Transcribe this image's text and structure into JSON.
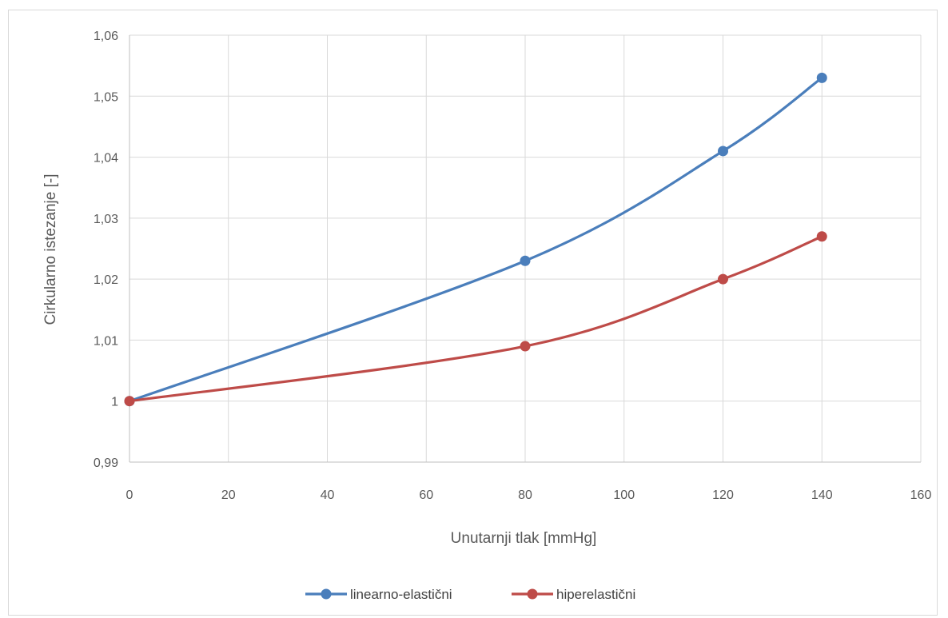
{
  "chart_data": {
    "type": "line",
    "xlabel": "Unutarnji tlak [mmHg]",
    "ylabel": "Cirkularno istezanje [-]",
    "xlim": [
      0,
      160
    ],
    "ylim": [
      0.99,
      1.06
    ],
    "x_ticks": [
      0,
      20,
      40,
      60,
      80,
      100,
      120,
      140,
      160
    ],
    "x_tick_labels": [
      "0",
      "20",
      "40",
      "60",
      "80",
      "100",
      "120",
      "140",
      "160"
    ],
    "y_ticks": [
      0.99,
      1.0,
      1.01,
      1.02,
      1.03,
      1.04,
      1.05,
      1.06
    ],
    "y_tick_labels": [
      "0,99",
      "1",
      "1,01",
      "1,02",
      "1,03",
      "1,04",
      "1,05",
      "1,06"
    ],
    "grid": true,
    "smooth": true,
    "legend_position": "bottom",
    "series": [
      {
        "name": "linearno-elastični",
        "color": "#4a7ebb",
        "x": [
          0,
          80,
          120,
          140
        ],
        "y": [
          1.0,
          1.023,
          1.041,
          1.053
        ]
      },
      {
        "name": "hiperelastični",
        "color": "#be4b48",
        "x": [
          0,
          80,
          120,
          140
        ],
        "y": [
          1.0,
          1.009,
          1.02,
          1.027
        ]
      }
    ]
  }
}
